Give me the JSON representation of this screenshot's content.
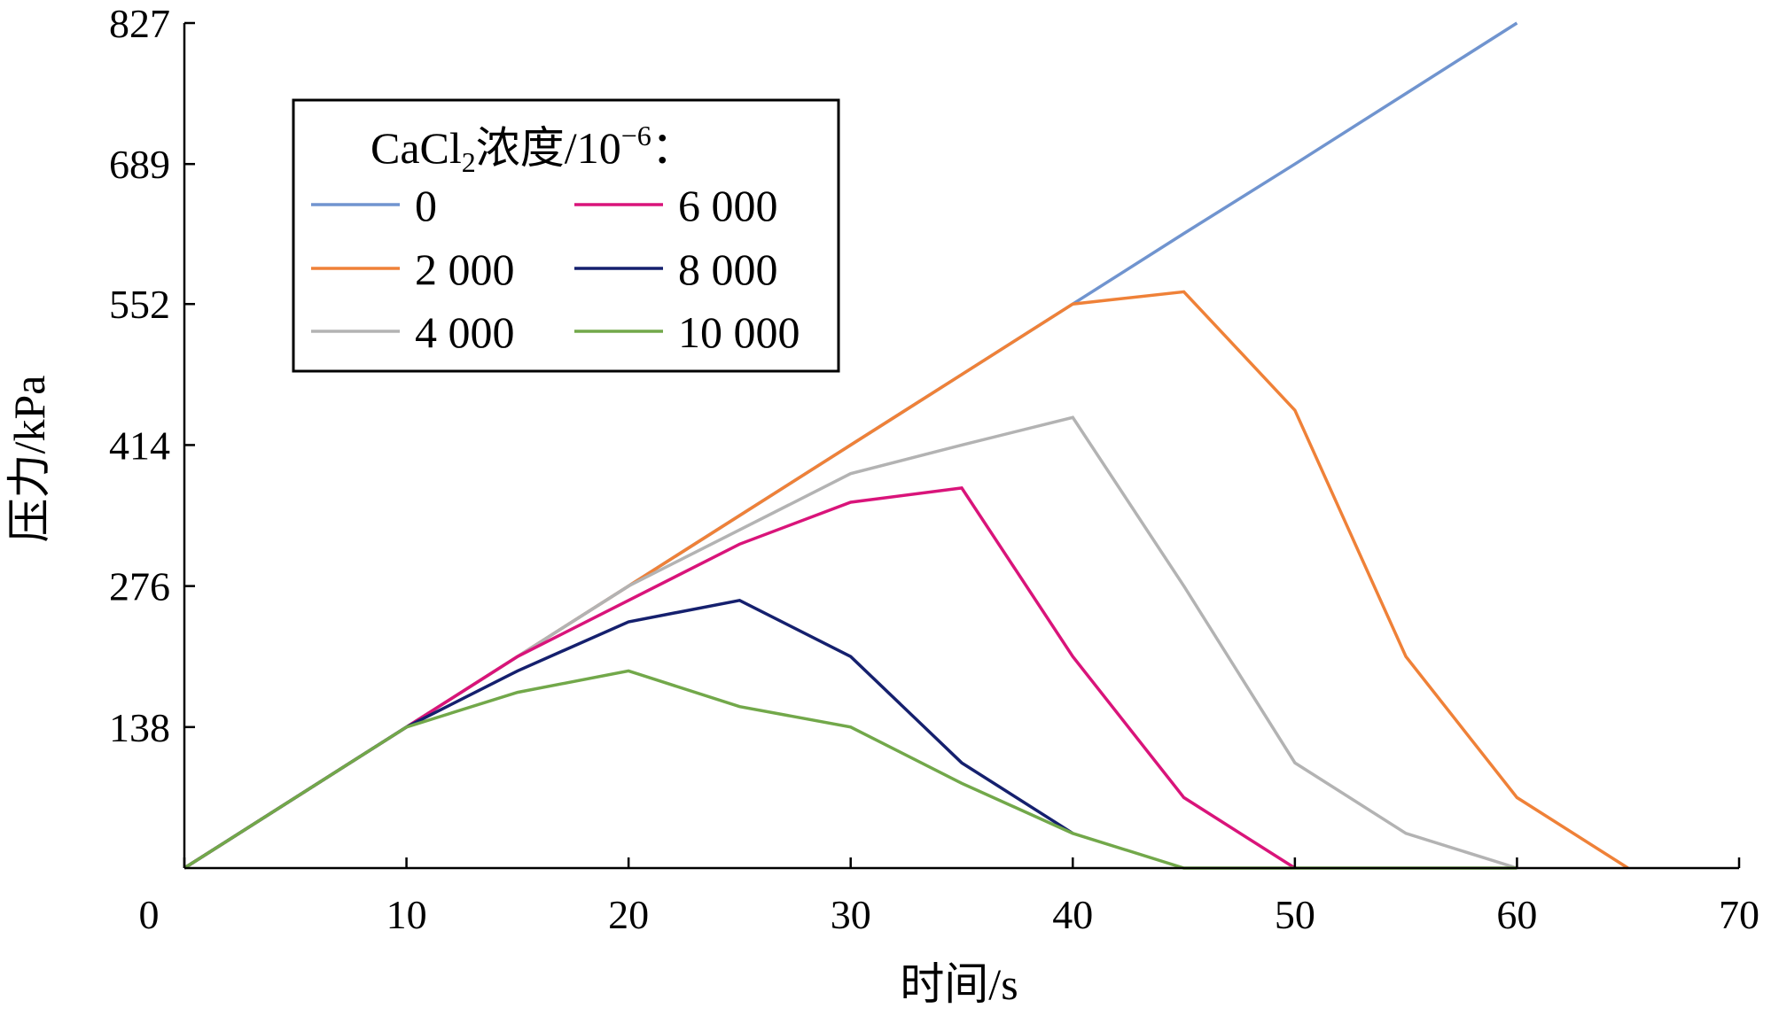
{
  "chart_data": {
    "type": "line",
    "xlabel": "时间/s",
    "ylabel": "压力/kPa",
    "xlim": [
      0,
      70
    ],
    "ylim": [
      0,
      827
    ],
    "xticks": [
      0,
      10,
      20,
      30,
      40,
      50,
      60,
      70
    ],
    "yticks": [
      138,
      276,
      414,
      552,
      689,
      827
    ],
    "legend": {
      "title_prefix": "CaCl",
      "title_sub": "2",
      "title_middle": "浓度/10",
      "title_sup": "−6",
      "title_suffix": "：",
      "placement": "top-left"
    },
    "series": [
      {
        "name": "0",
        "color": "#7094cf",
        "x": [
          0,
          10,
          15,
          20,
          25,
          30,
          35,
          40,
          45,
          50,
          55,
          60
        ],
        "y": [
          0,
          138,
          207,
          276,
          345,
          414,
          483,
          552,
          621,
          689,
          758,
          827
        ]
      },
      {
        "name": "2 000",
        "color": "#ef8138",
        "x": [
          0,
          10,
          15,
          20,
          25,
          30,
          35,
          40,
          45,
          50,
          55,
          60,
          65
        ],
        "y": [
          0,
          138,
          207,
          276,
          345,
          414,
          483,
          552,
          564,
          448,
          207,
          69,
          0
        ]
      },
      {
        "name": "4 000",
        "color": "#b3b3b3",
        "x": [
          0,
          10,
          15,
          20,
          25,
          30,
          35,
          40,
          45,
          50,
          55,
          60
        ],
        "y": [
          0,
          138,
          207,
          276,
          331,
          386,
          414,
          441,
          276,
          103,
          34,
          0
        ]
      },
      {
        "name": "6 000",
        "color": "#d9147a",
        "x": [
          0,
          10,
          15,
          20,
          25,
          30,
          35,
          40,
          45,
          50
        ],
        "y": [
          0,
          138,
          207,
          262,
          317,
          358,
          372,
          207,
          69,
          0
        ]
      },
      {
        "name": "8 000",
        "color": "#15206e",
        "x": [
          0,
          10,
          15,
          20,
          25,
          30,
          35,
          40
        ],
        "y": [
          0,
          138,
          193,
          241,
          262,
          207,
          103,
          34
        ]
      },
      {
        "name": "10 000",
        "color": "#72a84a",
        "x": [
          0,
          10,
          15,
          20,
          25,
          30,
          35,
          40,
          45,
          50,
          55,
          60
        ],
        "y": [
          0,
          138,
          172,
          193,
          158,
          138,
          83,
          34,
          0,
          0,
          0,
          0
        ]
      }
    ]
  }
}
